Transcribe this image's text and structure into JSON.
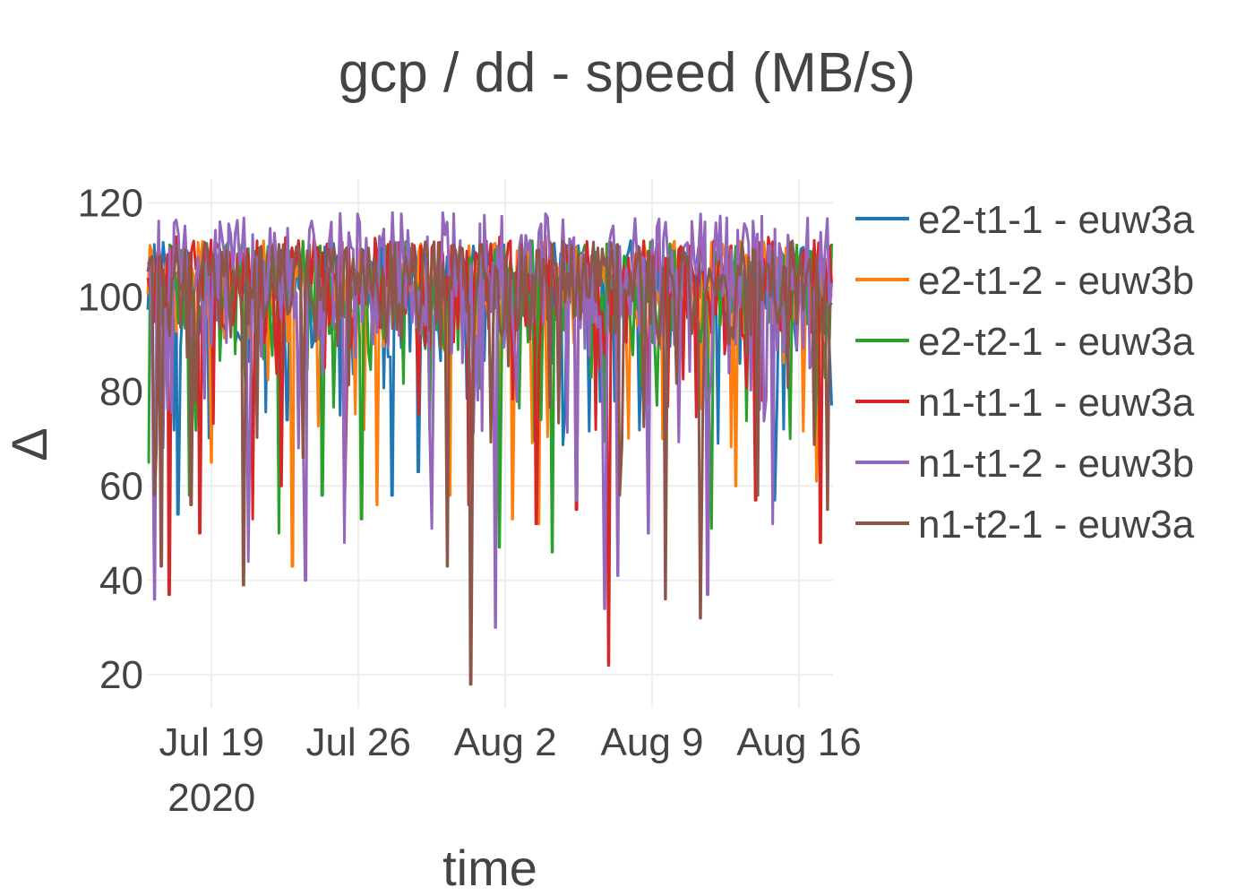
{
  "chart_data": {
    "type": "line",
    "title": "gcp / dd - speed (MB/s)",
    "xlabel": "time",
    "ylabel": "Δ",
    "x_range": [
      "2020-07-15T23:00",
      "2020-08-17T15:00"
    ],
    "ylim": [
      13,
      125
    ],
    "yticks": [
      20,
      40,
      60,
      80,
      100,
      120
    ],
    "xticks": [
      {
        "date": "2020-07-19",
        "label": "Jul 19",
        "sublabel": "2020"
      },
      {
        "date": "2020-07-26",
        "label": "Jul 26",
        "sublabel": ""
      },
      {
        "date": "2020-08-02",
        "label": "Aug 2",
        "sublabel": ""
      },
      {
        "date": "2020-08-09",
        "label": "Aug 9",
        "sublabel": ""
      },
      {
        "date": "2020-08-16",
        "label": "Aug 16",
        "sublabel": ""
      }
    ],
    "grid": true,
    "legend_position": "right",
    "series": [
      {
        "name": "e2-t1-1 - euw3a",
        "color": "#1f77b4",
        "typical_range": [
          85,
          112
        ],
        "dips": [
          [
            "2020-07-17T09:00",
            54
          ],
          [
            "2020-07-22T14:00",
            74
          ],
          [
            "2020-07-25T03:00",
            75
          ],
          [
            "2020-07-27T14:00",
            58
          ],
          [
            "2020-07-28T20:00",
            63
          ],
          [
            "2020-08-04T06:00",
            86
          ],
          [
            "2020-08-07T05:00",
            78
          ],
          [
            "2020-08-09T16:00",
            70
          ],
          [
            "2020-08-11T15:00",
            62
          ],
          [
            "2020-08-14T20:00",
            57
          ]
        ]
      },
      {
        "name": "e2-t1-2 - euw3b",
        "color": "#ff7f0e",
        "typical_range": [
          88,
          112
        ],
        "dips": [
          [
            "2020-07-19T00:00",
            65
          ],
          [
            "2020-07-22T21:00",
            43
          ],
          [
            "2020-07-26T21:00",
            56
          ],
          [
            "2020-07-30T09:00",
            58
          ],
          [
            "2020-08-02T08:00",
            53
          ],
          [
            "2020-08-03T14:00",
            52
          ],
          [
            "2020-08-09T12:00",
            70
          ],
          [
            "2020-08-13T00:00",
            60
          ],
          [
            "2020-08-16T20:00",
            61
          ]
        ]
      },
      {
        "name": "e2-t2-1 - euw3a",
        "color": "#2ca02c",
        "typical_range": [
          85,
          112
        ],
        "dips": [
          [
            "2020-07-16T00:00",
            65
          ],
          [
            "2020-07-17T23:00",
            58
          ],
          [
            "2020-07-22T05:00",
            50
          ],
          [
            "2020-07-24T06:00",
            58
          ],
          [
            "2020-07-26T03:00",
            53
          ],
          [
            "2020-08-01T17:00",
            47
          ],
          [
            "2020-08-04T06:00",
            46
          ],
          [
            "2020-08-11T20:00",
            51
          ],
          [
            "2020-08-15T14:00",
            70
          ]
        ]
      },
      {
        "name": "n1-t1-1 - euw3a",
        "color": "#d62728",
        "typical_range": [
          88,
          113
        ],
        "dips": [
          [
            "2020-07-16T23:00",
            37
          ],
          [
            "2020-07-18T10:00",
            50
          ],
          [
            "2020-07-20T23:00",
            53
          ],
          [
            "2020-07-22T08:00",
            60
          ],
          [
            "2020-07-25T08:00",
            53
          ],
          [
            "2020-07-31T06:00",
            56
          ],
          [
            "2020-08-03T11:00",
            52
          ],
          [
            "2020-08-05T10:00",
            55
          ],
          [
            "2020-08-06T22:00",
            22
          ],
          [
            "2020-08-13T23:00",
            57
          ],
          [
            "2020-08-17T00:00",
            48
          ]
        ]
      },
      {
        "name": "n1-t1-2 - euw3b",
        "color": "#9467bd",
        "typical_range": [
          82,
          118
        ],
        "dips": [
          [
            "2020-07-16T07:00",
            36
          ],
          [
            "2020-07-20T18:00",
            44
          ],
          [
            "2020-07-23T12:00",
            40
          ],
          [
            "2020-07-25T08:00",
            48
          ],
          [
            "2020-07-29T12:00",
            51
          ],
          [
            "2020-08-01T13:00",
            30
          ],
          [
            "2020-08-05T10:00",
            57
          ],
          [
            "2020-08-06T18:00",
            34
          ],
          [
            "2020-08-07T09:00",
            41
          ],
          [
            "2020-08-08T20:00",
            50
          ],
          [
            "2020-08-11T16:00",
            37
          ],
          [
            "2020-08-14T18:00",
            52
          ]
        ]
      },
      {
        "name": "n1-t2-1 - euw3a",
        "color": "#8c564b",
        "typical_range": [
          86,
          112
        ],
        "dips": [
          [
            "2020-07-16T07:00",
            58
          ],
          [
            "2020-07-16T15:00",
            43
          ],
          [
            "2020-07-18T00:00",
            56
          ],
          [
            "2020-07-20T12:00",
            39
          ],
          [
            "2020-07-23T09:00",
            66
          ],
          [
            "2020-07-30T06:00",
            43
          ],
          [
            "2020-07-31T08:00",
            18
          ],
          [
            "2020-08-07T11:00",
            58
          ],
          [
            "2020-08-09T15:00",
            36
          ],
          [
            "2020-08-11T07:00",
            32
          ],
          [
            "2020-08-14T01:00",
            58
          ],
          [
            "2020-08-17T09:00",
            55
          ]
        ]
      }
    ]
  }
}
